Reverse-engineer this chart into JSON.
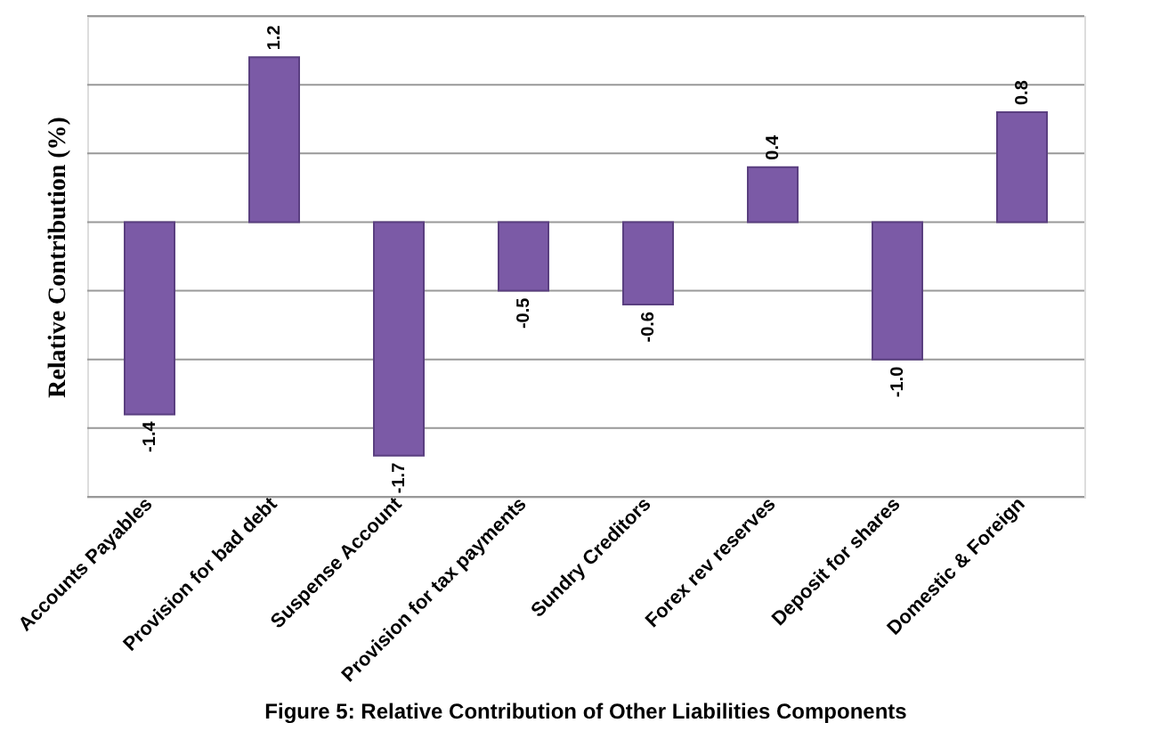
{
  "chart_data": {
    "type": "bar",
    "ylabel": "Relative Contribution (%)",
    "categories": [
      "Accounts  Payables",
      "Provision  for  bad  debt",
      "Suspense  Account",
      "Provision for  tax  payments",
      "Sundry  Creditors",
      "Forex  rev reserves",
      "Deposit for shares",
      "Domestic & Foreign"
    ],
    "values": [
      -1.4,
      1.2,
      -1.7,
      -0.5,
      -0.6,
      0.4,
      -1.0,
      0.8
    ],
    "color": "#7b5aa6",
    "ylim": [
      -2,
      1.5
    ],
    "yticks": [
      {
        "value": -2,
        "label": null
      },
      {
        "value": -1.5,
        "label": null
      },
      {
        "value": -1,
        "label": null
      },
      {
        "value": -0.5,
        "label": null
      },
      {
        "value": 0,
        "label": null
      },
      {
        "value": 0.5,
        "label": null
      },
      {
        "value": 1,
        "label": null
      },
      {
        "value": 1.5,
        "label": null
      }
    ],
    "tick_labels": "x",
    "grid": "y",
    "value_labels": [
      "-1.4",
      "1.2",
      "-1.7",
      "-0.5",
      "-0.6",
      "0.4",
      "-1.0",
      "0.8"
    ],
    "annotations": [
      "Figure 5: Relative Contribution of Other Liabilities Components"
    ]
  }
}
